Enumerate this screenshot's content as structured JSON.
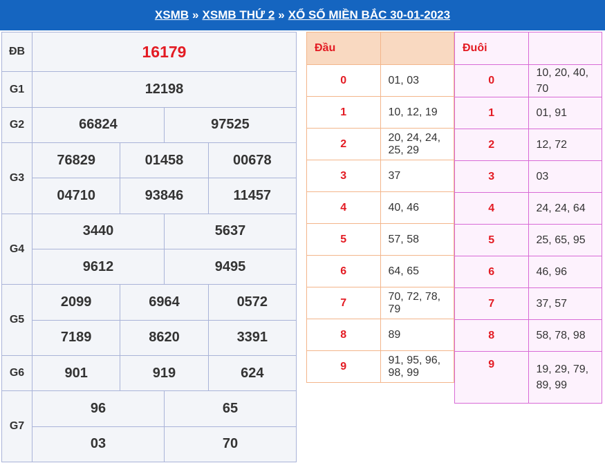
{
  "header": {
    "crumb1": "XSMB",
    "crumb2": "XSMB THỨ 2",
    "crumb3": "XỔ SỐ MIỀN BẮC 30-01-2023",
    "separator": "»"
  },
  "results": {
    "db": {
      "label": "ĐB",
      "values": [
        "16179"
      ]
    },
    "g1": {
      "label": "G1",
      "values": [
        "12198"
      ]
    },
    "g2": {
      "label": "G2",
      "values": [
        "66824",
        "97525"
      ]
    },
    "g3": {
      "label": "G3",
      "values": [
        "76829",
        "01458",
        "00678",
        "04710",
        "93846",
        "11457"
      ]
    },
    "g4": {
      "label": "G4",
      "values": [
        "3440",
        "5637",
        "9612",
        "9495"
      ]
    },
    "g5": {
      "label": "G5",
      "values": [
        "2099",
        "6964",
        "0572",
        "7189",
        "8620",
        "3391"
      ]
    },
    "g6": {
      "label": "G6",
      "values": [
        "901",
        "919",
        "624"
      ]
    },
    "g7": {
      "label": "G7",
      "values": [
        "96",
        "65",
        "03",
        "70"
      ]
    }
  },
  "dau": {
    "header": "Đầu",
    "rows": [
      {
        "k": "0",
        "v": "01, 03"
      },
      {
        "k": "1",
        "v": "10, 12, 19"
      },
      {
        "k": "2",
        "v": "20, 24, 24, 25, 29"
      },
      {
        "k": "3",
        "v": "37"
      },
      {
        "k": "4",
        "v": "40, 46"
      },
      {
        "k": "5",
        "v": "57, 58"
      },
      {
        "k": "6",
        "v": "64, 65"
      },
      {
        "k": "7",
        "v": "70, 72, 78, 79"
      },
      {
        "k": "8",
        "v": "89"
      },
      {
        "k": "9",
        "v": "91, 95, 96, 98, 99"
      }
    ]
  },
  "duoi": {
    "header": "Đuôi",
    "rows": [
      {
        "k": "0",
        "v": "10, 20, 40, 70"
      },
      {
        "k": "1",
        "v": "01, 91"
      },
      {
        "k": "2",
        "v": "12, 72"
      },
      {
        "k": "3",
        "v": "03"
      },
      {
        "k": "4",
        "v": "24, 24, 64"
      },
      {
        "k": "5",
        "v": "25, 65, 95"
      },
      {
        "k": "6",
        "v": "46, 96"
      },
      {
        "k": "7",
        "v": "37, 57"
      },
      {
        "k": "8",
        "v": "58, 78, 98"
      },
      {
        "k": "9",
        "v": "19, 29, 79, 89, 99"
      }
    ]
  },
  "colors": {
    "header_bg": "#1565c0",
    "special_prize": "#e31b23",
    "dau_border": "#f3b58a",
    "duoi_border": "#d86ad6"
  }
}
